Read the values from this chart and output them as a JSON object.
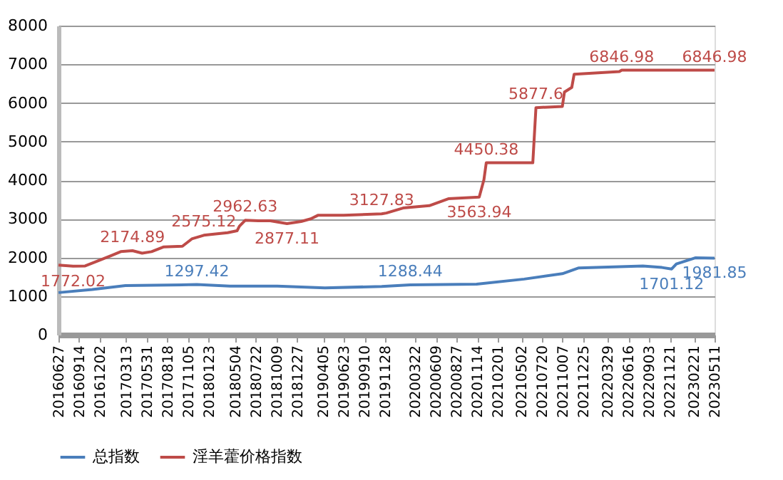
{
  "chart_data": {
    "type": "line",
    "xlim": [
      "2016-06-27",
      "2023-05-11"
    ],
    "xticks": [
      {
        "value": "2016-06-27",
        "label": "20160627"
      },
      {
        "value": "2016-09-14",
        "label": "20160914"
      },
      {
        "value": "2016-12-02",
        "label": "20161202"
      },
      {
        "value": "2017-03-13",
        "label": "20170313"
      },
      {
        "value": "2017-05-31",
        "label": "20170531"
      },
      {
        "value": "2017-08-18",
        "label": "20170818"
      },
      {
        "value": "2017-11-05",
        "label": "20171105"
      },
      {
        "value": "2018-01-23",
        "label": "20180123"
      },
      {
        "value": "2018-05-04",
        "label": "20180504"
      },
      {
        "value": "2018-07-22",
        "label": "20180722"
      },
      {
        "value": "2018-10-09",
        "label": "20181009"
      },
      {
        "value": "2018-12-27",
        "label": "20181227"
      },
      {
        "value": "2019-04-05",
        "label": "20190405"
      },
      {
        "value": "2019-06-23",
        "label": "20190623"
      },
      {
        "value": "2019-09-10",
        "label": "20190910"
      },
      {
        "value": "2019-11-28",
        "label": "20191128"
      },
      {
        "value": "2020-03-22",
        "label": "20200322"
      },
      {
        "value": "2020-06-09",
        "label": "20200609"
      },
      {
        "value": "2020-08-27",
        "label": "20200827"
      },
      {
        "value": "2020-11-14",
        "label": "20201114"
      },
      {
        "value": "2021-02-01",
        "label": "20210201"
      },
      {
        "value": "2021-05-02",
        "label": "20210502"
      },
      {
        "value": "2021-07-20",
        "label": "20210720"
      },
      {
        "value": "2021-10-07",
        "label": "20211007"
      },
      {
        "value": "2021-12-25",
        "label": "20211225"
      },
      {
        "value": "2022-03-29",
        "label": "20220329"
      },
      {
        "value": "2022-06-16",
        "label": "20220616"
      },
      {
        "value": "2022-09-03",
        "label": "20220903"
      },
      {
        "value": "2022-11-21",
        "label": "20221121"
      },
      {
        "value": "2023-02-21",
        "label": "20230221"
      },
      {
        "value": "2023-05-11",
        "label": "20230511"
      }
    ],
    "ylim": [
      0,
      8000
    ],
    "yticks": [
      0,
      1000,
      2000,
      3000,
      4000,
      5000,
      6000,
      7000,
      8000
    ],
    "grid": "y",
    "legend": "bottom",
    "line_style": "solid",
    "marker": "none",
    "series": [
      {
        "name": "总指数",
        "color": "#4a7ebb",
        "x": [
          "2016-06-27",
          "2016-11-03",
          "2017-03-10",
          "2017-12-08",
          "2018-04-14",
          "2018-10-12",
          "2019-04-12",
          "2019-11-15",
          "2020-03-03",
          "2020-11-12",
          "2021-05-13",
          "2021-10-06",
          "2021-12-08",
          "2022-08-10",
          "2022-10-22",
          "2022-11-28",
          "2022-12-16",
          "2023-02-26",
          "2023-05-11"
        ],
        "values": [
          1090,
          1170,
          1270,
          1297.42,
          1260,
          1260,
          1210,
          1250,
          1288.44,
          1310,
          1440,
          1580,
          1730,
          1780,
          1740,
          1701.12,
          1830,
          1990,
          1981.85
        ],
        "value_labels": [
          null,
          null,
          null,
          "1297.42",
          null,
          null,
          null,
          null,
          "1288.44",
          null,
          null,
          null,
          null,
          null,
          null,
          "1701.12",
          null,
          null,
          "1981.85"
        ]
      },
      {
        "name": "淫羊藿价格指数",
        "color": "#be4b48",
        "x": [
          "2016-06-27",
          "2016-08-22",
          "2016-10-07",
          "2016-11-21",
          "2017-01-15",
          "2017-02-20",
          "2017-04-06",
          "2017-05-13",
          "2017-06-18",
          "2017-08-02",
          "2017-10-14",
          "2017-11-19",
          "2018-01-04",
          "2018-02-18",
          "2018-04-05",
          "2018-05-11",
          "2018-05-20",
          "2018-06-11",
          "2018-07-31",
          "2018-09-15",
          "2018-11-18",
          "2019-01-11",
          "2019-02-17",
          "2019-03-16",
          "2019-06-23",
          "2019-11-15",
          "2019-12-03",
          "2020-02-05",
          "2020-05-15",
          "2020-07-27",
          "2020-11-22",
          "2020-12-10",
          "2020-12-19",
          "2021-06-15",
          "2021-06-27",
          "2021-10-06",
          "2021-10-14",
          "2021-11-11",
          "2021-11-20",
          "2022-05-12",
          "2022-05-21",
          "2023-05-11"
        ],
        "values": [
          1800,
          1772.02,
          1780,
          1900,
          2050,
          2150,
          2174.89,
          2110,
          2150,
          2270,
          2290,
          2480,
          2575.12,
          2610,
          2640,
          2690,
          2810,
          2962.63,
          2950,
          2950,
          2877.11,
          2930,
          3000,
          3090,
          3090,
          3127.83,
          3150,
          3280,
          3340,
          3520,
          3563.94,
          4010,
          4450.38,
          4450.38,
          5877.6,
          5910,
          6280,
          6400,
          6740,
          6810,
          6846.98,
          6846.98
        ],
        "value_labels": [
          null,
          "1772.02",
          null,
          null,
          null,
          null,
          "2174.89",
          null,
          null,
          null,
          null,
          null,
          "2575.12",
          null,
          null,
          null,
          null,
          "2962.63",
          null,
          null,
          "2877.11",
          null,
          null,
          null,
          null,
          "3127.83",
          null,
          null,
          null,
          null,
          "3563.94",
          null,
          "4450.38",
          null,
          "5877.6",
          null,
          null,
          null,
          null,
          null,
          "6846.98",
          "6846.98"
        ]
      }
    ]
  }
}
